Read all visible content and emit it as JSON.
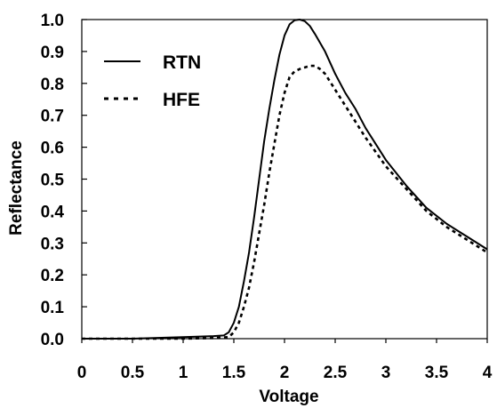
{
  "chart_data": {
    "type": "line",
    "title": "",
    "xlabel": "Voltage",
    "ylabel": "Reflectance",
    "xlim": [
      0,
      4
    ],
    "ylim": [
      0,
      1.0
    ],
    "xticks": [
      "0",
      "0.5",
      "1",
      "1.5",
      "2",
      "2.5",
      "3",
      "3.5",
      "4"
    ],
    "yticks": [
      "0.0",
      "0.1",
      "0.2",
      "0.3",
      "0.4",
      "0.5",
      "0.6",
      "0.7",
      "0.8",
      "0.9",
      "1.0"
    ],
    "grid": false,
    "legend_position": "top-left",
    "series": [
      {
        "name": "RTN",
        "style": "solid",
        "color": "#000000",
        "x": [
          0,
          0.5,
          1.0,
          1.3,
          1.4,
          1.45,
          1.5,
          1.55,
          1.6,
          1.65,
          1.7,
          1.75,
          1.8,
          1.85,
          1.9,
          1.95,
          2.0,
          2.05,
          2.1,
          2.15,
          2.2,
          2.25,
          2.3,
          2.4,
          2.5,
          2.6,
          2.7,
          2.8,
          3.0,
          3.2,
          3.4,
          3.6,
          3.8,
          4.0
        ],
        "y": [
          0.0,
          0.0,
          0.005,
          0.008,
          0.01,
          0.02,
          0.05,
          0.1,
          0.18,
          0.27,
          0.38,
          0.5,
          0.62,
          0.72,
          0.81,
          0.89,
          0.95,
          0.985,
          0.998,
          1.0,
          0.995,
          0.98,
          0.955,
          0.9,
          0.83,
          0.77,
          0.72,
          0.66,
          0.56,
          0.48,
          0.41,
          0.36,
          0.32,
          0.28
        ]
      },
      {
        "name": "HFE",
        "style": "dotted",
        "color": "#000000",
        "x": [
          0,
          0.5,
          1.0,
          1.3,
          1.45,
          1.5,
          1.55,
          1.6,
          1.65,
          1.7,
          1.75,
          1.8,
          1.85,
          1.9,
          1.95,
          2.0,
          2.05,
          2.1,
          2.15,
          2.2,
          2.25,
          2.3,
          2.35,
          2.4,
          2.5,
          2.6,
          2.7,
          2.8,
          3.0,
          3.2,
          3.4,
          3.6,
          3.8,
          4.0
        ],
        "y": [
          0.0,
          0.0,
          0.0,
          0.002,
          0.005,
          0.02,
          0.05,
          0.1,
          0.16,
          0.24,
          0.33,
          0.42,
          0.52,
          0.61,
          0.7,
          0.77,
          0.82,
          0.838,
          0.845,
          0.85,
          0.855,
          0.855,
          0.845,
          0.83,
          0.78,
          0.73,
          0.68,
          0.63,
          0.54,
          0.47,
          0.4,
          0.35,
          0.31,
          0.27
        ]
      }
    ]
  }
}
